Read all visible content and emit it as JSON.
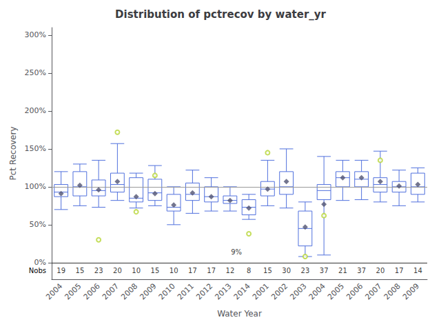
{
  "chart_data": {
    "type": "boxplot",
    "title": "Distribution of pctrecov by water_yr",
    "xlabel": "Water Year",
    "ylabel": "Pct Recovery",
    "categories": [
      "2004",
      "2005",
      "2006",
      "2007",
      "2008",
      "2009",
      "2010",
      "2011",
      "2012",
      "2013",
      "2014",
      "2001",
      "2002",
      "2003",
      "2004",
      "2005",
      "2006",
      "2007",
      "2008",
      "2009"
    ],
    "boxes": [
      {
        "q1": 87,
        "med": 93,
        "q3": 103,
        "mean": 91,
        "whislo": 70,
        "whishi": 120,
        "fliers": []
      },
      {
        "q1": 88,
        "med": 100,
        "q3": 120,
        "mean": 102,
        "whislo": 75,
        "whishi": 130,
        "fliers": []
      },
      {
        "q1": 88,
        "med": 95,
        "q3": 109,
        "mean": 96,
        "whislo": 73,
        "whishi": 135,
        "fliers": [
          30
        ]
      },
      {
        "q1": 93,
        "med": 103,
        "q3": 118,
        "mean": 107,
        "whislo": 82,
        "whishi": 157,
        "fliers": [
          172
        ]
      },
      {
        "q1": 80,
        "med": 85,
        "q3": 112,
        "mean": 87,
        "whislo": 72,
        "whishi": 118,
        "fliers": [
          67
        ]
      },
      {
        "q1": 82,
        "med": 92,
        "q3": 110,
        "mean": 91,
        "whislo": 75,
        "whishi": 128,
        "fliers": [
          115
        ]
      },
      {
        "q1": 68,
        "med": 73,
        "q3": 90,
        "mean": 76,
        "whislo": 50,
        "whishi": 100,
        "fliers": []
      },
      {
        "q1": 82,
        "med": 90,
        "q3": 105,
        "mean": 92,
        "whislo": 65,
        "whishi": 122,
        "fliers": []
      },
      {
        "q1": 80,
        "med": 87,
        "q3": 100,
        "mean": 87,
        "whislo": 68,
        "whishi": 112,
        "fliers": []
      },
      {
        "q1": 78,
        "med": 82,
        "q3": 88,
        "mean": 82,
        "whislo": 68,
        "whishi": 100,
        "fliers": []
      },
      {
        "q1": 63,
        "med": 73,
        "q3": 83,
        "mean": 72,
        "whislo": 57,
        "whishi": 90,
        "fliers": [
          38
        ]
      },
      {
        "q1": 88,
        "med": 97,
        "q3": 107,
        "mean": 97,
        "whislo": 75,
        "whishi": 135,
        "fliers": [
          145
        ]
      },
      {
        "q1": 90,
        "med": 100,
        "q3": 120,
        "mean": 107,
        "whislo": 72,
        "whishi": 150,
        "fliers": []
      },
      {
        "q1": 22,
        "med": 45,
        "q3": 68,
        "mean": 47,
        "whislo": 8,
        "whishi": 80,
        "fliers": [
          8
        ]
      },
      {
        "q1": 83,
        "med": 95,
        "q3": 103,
        "mean": 77,
        "whislo": 10,
        "whishi": 140,
        "fliers": [
          62
        ]
      },
      {
        "q1": 100,
        "med": 112,
        "q3": 120,
        "mean": 112,
        "whislo": 82,
        "whishi": 135,
        "fliers": []
      },
      {
        "q1": 100,
        "med": 110,
        "q3": 120,
        "mean": 112,
        "whislo": 83,
        "whishi": 135,
        "fliers": []
      },
      {
        "q1": 93,
        "med": 103,
        "q3": 112,
        "mean": 107,
        "whislo": 80,
        "whishi": 147,
        "fliers": [
          135
        ]
      },
      {
        "q1": 93,
        "med": 100,
        "q3": 107,
        "mean": 101,
        "whislo": 75,
        "whishi": 122,
        "fliers": []
      },
      {
        "q1": 90,
        "med": 100,
        "q3": 118,
        "mean": 103,
        "whislo": 80,
        "whishi": 125,
        "fliers": []
      }
    ],
    "nobs_label": "Nobs",
    "nobs": [
      19,
      15,
      23,
      20,
      10,
      15,
      10,
      17,
      17,
      12,
      8,
      15,
      30,
      23,
      37,
      21,
      37,
      20,
      17,
      14
    ],
    "hline": 100,
    "nobs_separator": 0,
    "annotations": [
      {
        "text": "9%",
        "category_index": 10,
        "y": 9
      }
    ],
    "ylim": [
      -22,
      310
    ],
    "yticks": [
      {
        "value": 0,
        "label": "0%"
      },
      {
        "value": 50,
        "label": "50%"
      },
      {
        "value": 100,
        "label": "100%"
      },
      {
        "value": 150,
        "label": "150%"
      },
      {
        "value": 200,
        "label": "200%"
      },
      {
        "value": 250,
        "label": "250%"
      },
      {
        "value": 300,
        "label": "300%"
      }
    ],
    "grid": false
  }
}
